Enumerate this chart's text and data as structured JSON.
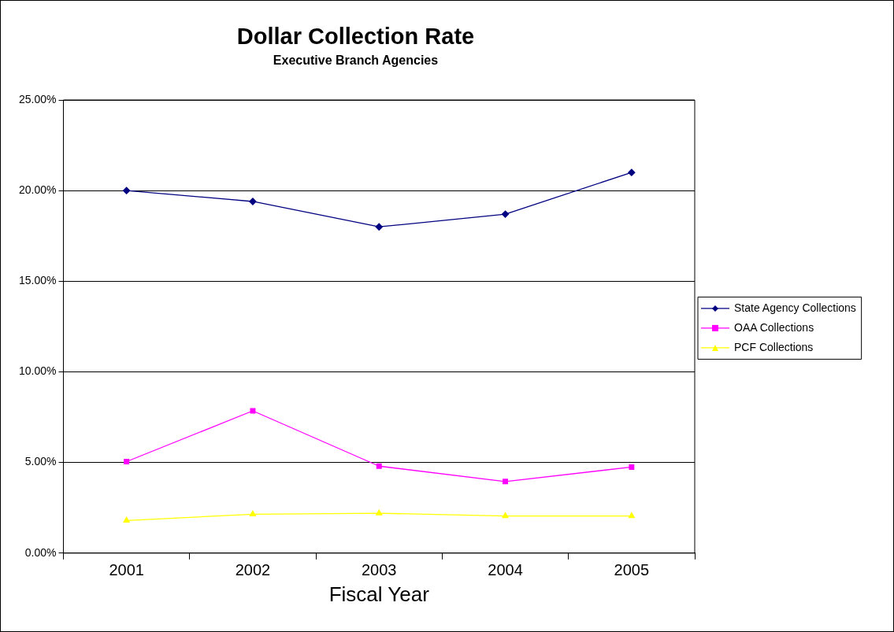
{
  "chart_data": {
    "type": "line",
    "title": "Dollar Collection Rate",
    "subtitle": "Executive Branch Agencies",
    "xlabel": "Fiscal Year",
    "categories": [
      "2001",
      "2002",
      "2003",
      "2004",
      "2005"
    ],
    "series": [
      {
        "name": "State Agency Collections",
        "color": "#000080",
        "marker": "diamond",
        "values": [
          20.0,
          19.4,
          18.0,
          18.7,
          21.0
        ]
      },
      {
        "name": "OAA Collections",
        "color": "#ff00ff",
        "marker": "square",
        "values": [
          5.05,
          7.85,
          4.8,
          3.95,
          4.75
        ]
      },
      {
        "name": "PCF Collections",
        "color": "#ffff00",
        "marker": "triangle",
        "values": [
          1.8,
          2.15,
          2.2,
          2.05,
          2.05
        ]
      }
    ],
    "ylim": [
      0,
      25
    ],
    "yticks": [
      {
        "value": 0,
        "label": "0.00%"
      },
      {
        "value": 5,
        "label": "5.00%"
      },
      {
        "value": 10,
        "label": "10.00%"
      },
      {
        "value": 15,
        "label": "15.00%"
      },
      {
        "value": 20,
        "label": "20.00%"
      },
      {
        "value": 25,
        "label": "25.00%"
      }
    ],
    "grid": "y",
    "legend": "right",
    "line_style": "solid"
  }
}
